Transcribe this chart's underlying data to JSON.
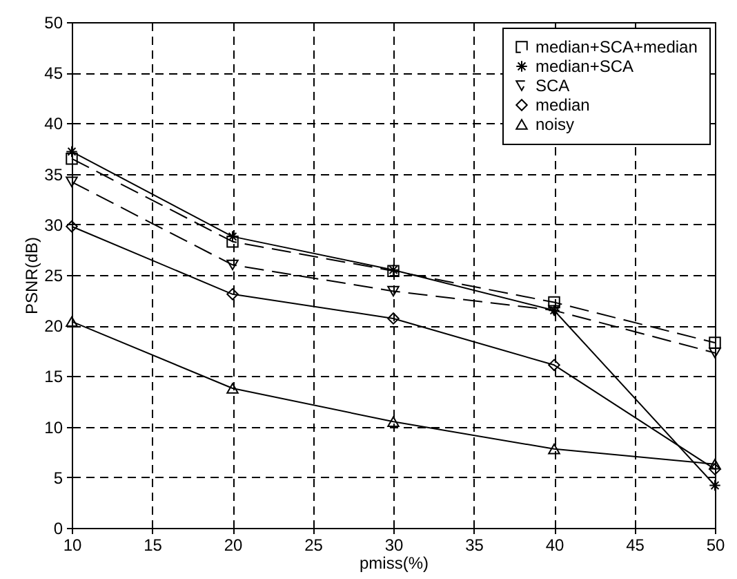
{
  "chart_data": {
    "type": "line",
    "xlabel": "pmiss(%)",
    "ylabel": "PSNR(dB)",
    "x": [
      10,
      20,
      30,
      40,
      50
    ],
    "series": [
      {
        "name": "median+SCA+median",
        "color": "#000000",
        "marker": "square",
        "line_style": "dashed",
        "values": [
          36.5,
          28.3,
          25.4,
          22.3,
          18.3
        ]
      },
      {
        "name": "median+SCA",
        "color": "#000000",
        "marker": "cross",
        "line_style": "solid",
        "values": [
          37.2,
          28.8,
          25.5,
          21.5,
          4.2
        ]
      },
      {
        "name": "SCA",
        "color": "#000000",
        "marker": "triangle-down",
        "line_style": "dashed",
        "values": [
          34.2,
          26,
          23.4,
          21.5,
          17.3
        ]
      },
      {
        "name": "median",
        "color": "#000000",
        "marker": "diamond",
        "line_style": "solid",
        "values": [
          29.8,
          23.1,
          20.7,
          16.1,
          5.8
        ]
      },
      {
        "name": "noisy",
        "color": "#000000",
        "marker": "triangle",
        "line_style": "solid",
        "values": [
          20.4,
          13.8,
          10.5,
          7.8,
          6.3
        ]
      }
    ],
    "xlim": [
      10,
      50
    ],
    "xticks": [
      10,
      15,
      20,
      25,
      30,
      35,
      40,
      45,
      50
    ],
    "ylim": [
      0,
      50
    ],
    "yticks": [
      0,
      5,
      10,
      15,
      20,
      25,
      30,
      35,
      40,
      45,
      50
    ],
    "grid": true,
    "legend": "top right"
  }
}
